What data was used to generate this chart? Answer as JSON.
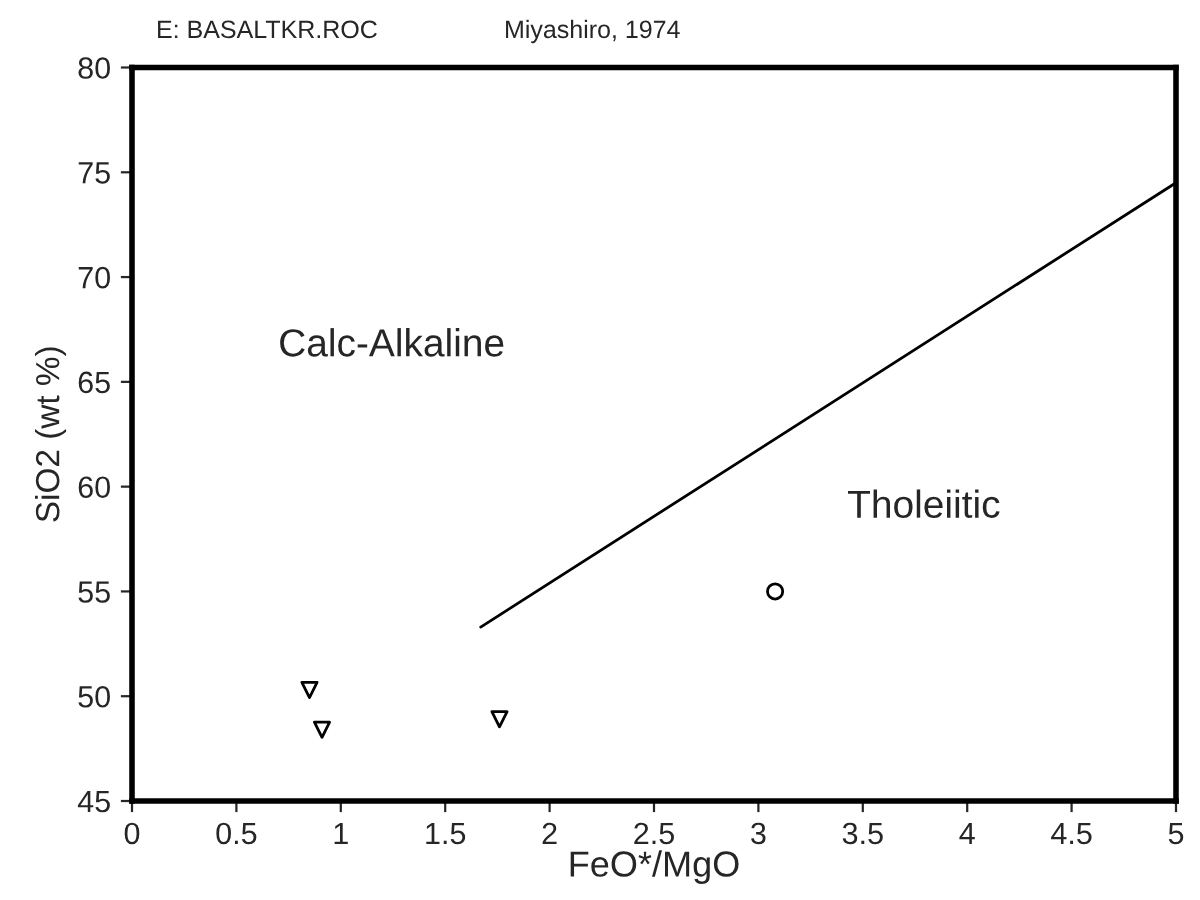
{
  "chart_data": {
    "type": "scatter",
    "title": "E: BASALTKR.ROC",
    "subtitle": "Miyashiro, 1974",
    "xlabel": "FeO*/MgO",
    "ylabel": "SiO2 (wt %)",
    "series": [
      {
        "type": "line",
        "color": "#000000",
        "x": [
          1.67,
          5
        ],
        "values": [
          53.3,
          74.5
        ],
        "marker": "none"
      },
      {
        "color": "#000000",
        "x": [
          0.85,
          0.91,
          1.76
        ],
        "values": [
          50.3,
          48.4,
          48.9
        ],
        "marker": "triangle"
      },
      {
        "color": "#000000",
        "x": [
          3.08
        ],
        "values": [
          55
        ],
        "marker": "circle"
      }
    ],
    "annotations": [
      "Calc-Alkaline",
      "Tholeiitic"
    ],
    "xlim": [
      0,
      5
    ],
    "xticks": [
      0,
      0.5,
      1,
      1.5,
      2,
      2.5,
      3,
      3.5,
      4,
      4.5,
      5
    ],
    "ylim": [
      45,
      80
    ],
    "yticks": [
      45,
      50,
      55,
      60,
      65,
      70,
      75,
      80
    ],
    "grid": false,
    "legend": false
  }
}
